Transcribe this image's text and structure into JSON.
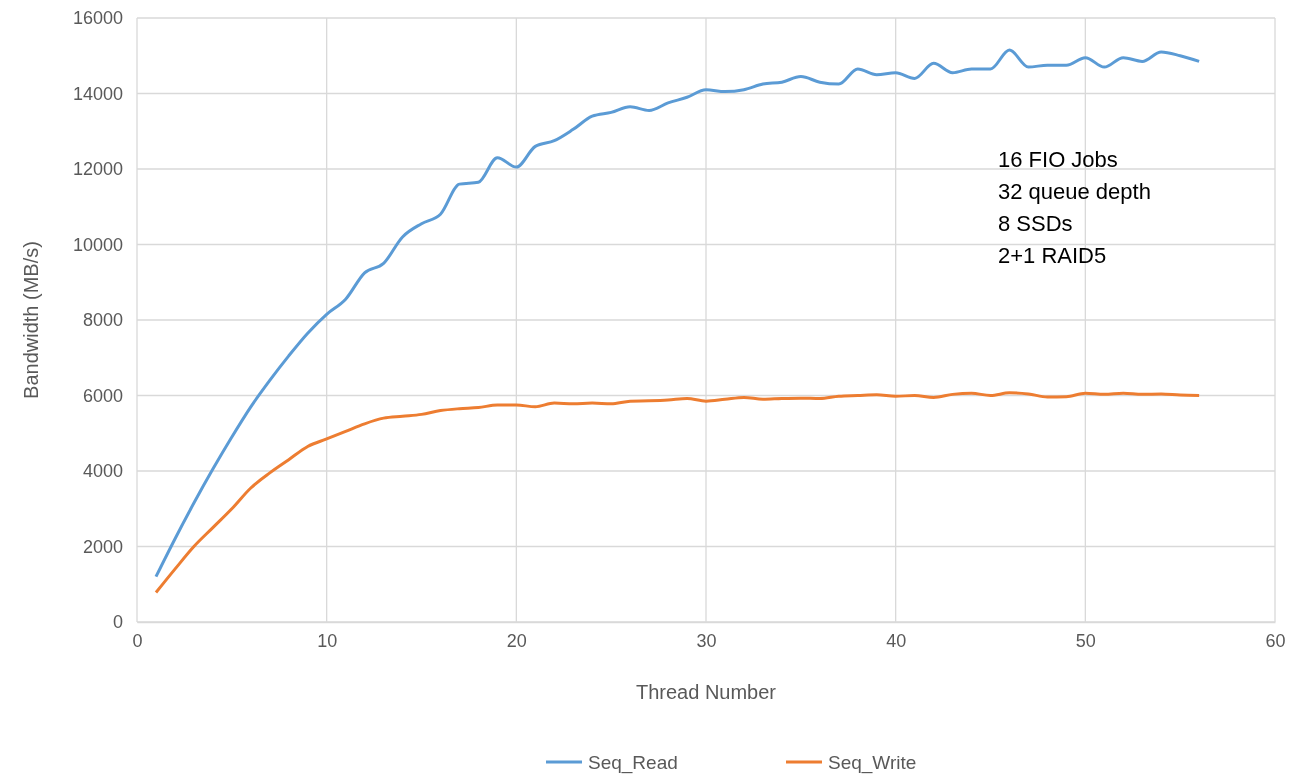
{
  "chart_data": {
    "type": "line",
    "xlabel": "Thread Number",
    "ylabel": "Bandwidth (MB/s)",
    "xlim": [
      0,
      60
    ],
    "xticks": [
      0,
      10,
      20,
      30,
      40,
      50,
      60
    ],
    "ylim": [
      0,
      16000
    ],
    "yticks": [
      0,
      2000,
      4000,
      6000,
      8000,
      10000,
      12000,
      14000,
      16000
    ],
    "grid": true,
    "legend": "bottom",
    "marker": "none",
    "line_style": "solid",
    "annotations": [
      "16 FIO Jobs",
      "32 queue depth",
      "8 SSDs",
      "2+1 RAID5"
    ],
    "x": [
      1,
      2,
      3,
      4,
      5,
      6,
      7,
      8,
      9,
      10,
      11,
      12,
      13,
      14,
      15,
      16,
      17,
      18,
      19,
      20,
      21,
      22,
      23,
      24,
      25,
      26,
      27,
      28,
      29,
      30,
      31,
      32,
      33,
      34,
      35,
      36,
      37,
      38,
      39,
      40,
      41,
      42,
      43,
      44,
      45,
      46,
      47,
      48,
      49,
      50,
      51,
      52,
      53,
      54,
      55,
      56
    ],
    "series": [
      {
        "name": "Seq_Read",
        "color": "#5b9bd5",
        "values": [
          1200,
          2200,
          3150,
          4050,
          4900,
          5700,
          6400,
          7050,
          7650,
          8150,
          8550,
          9250,
          9500,
          10200,
          10550,
          10800,
          11600,
          11650,
          12300,
          12050,
          12600,
          12750,
          13050,
          13400,
          13500,
          13650,
          13550,
          13750,
          13900,
          14100,
          14050,
          14100,
          14250,
          14300,
          14450,
          14300,
          14250,
          14650,
          14500,
          14550,
          14400,
          14800,
          14550,
          14650,
          14650,
          15150,
          14700,
          14750,
          14750,
          14950,
          14700,
          14950,
          14850,
          15100,
          15000,
          14850
        ]
      },
      {
        "name": "Seq_Write",
        "color": "#ed7d31",
        "values": [
          780,
          1400,
          2000,
          2500,
          3000,
          3550,
          3950,
          4300,
          4650,
          4850,
          5050,
          5250,
          5400,
          5450,
          5500,
          5600,
          5650,
          5680,
          5750,
          5750,
          5700,
          5800,
          5780,
          5800,
          5780,
          5850,
          5860,
          5880,
          5920,
          5850,
          5900,
          5950,
          5900,
          5920,
          5930,
          5920,
          5980,
          6000,
          6020,
          5980,
          6000,
          5950,
          6030,
          6060,
          6000,
          6070,
          6040,
          5960,
          5970,
          6060,
          6030,
          6060,
          6030,
          6040,
          6010,
          6000
        ]
      }
    ]
  }
}
